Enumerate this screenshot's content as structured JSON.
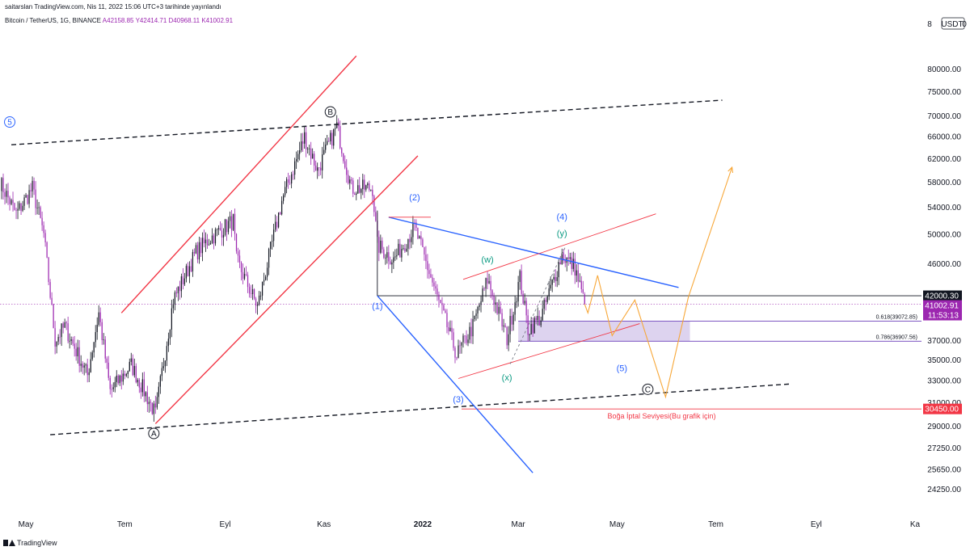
{
  "header": {
    "publisher_line": "saitarslan TradingView.com, Nis 11, 2022 15:06 UTC+3 tarihinde yayınlandı",
    "symbol": "Bitcoin / TetherUS, 1G, BINANCE",
    "open": "A42158.85",
    "high": "Y42414.71",
    "low": "D40968.11",
    "close": "K41002.91",
    "currency": "USDT",
    "currency_prefix": "8",
    "currency_suffix": "0"
  },
  "brand": {
    "name": "TradingView"
  },
  "colors": {
    "up": "#131722",
    "down": "#9c27b0",
    "channel": "#f23645",
    "trend_blue": "#2962ff",
    "projection": "#f7a738",
    "fib_zone": "#b39ddb",
    "wave_green": "#089981",
    "invalid": "#f23645"
  },
  "chart_data": {
    "type": "candlestick",
    "x_axis": {
      "type": "date",
      "range": [
        "2021-04-15",
        "2022-11-05"
      ],
      "tick_labels": [
        {
          "label": "May",
          "date": "2021-05-01"
        },
        {
          "label": "Tem",
          "date": "2021-07-01"
        },
        {
          "label": "Eyl",
          "date": "2021-09-01"
        },
        {
          "label": "Kas",
          "date": "2021-11-01"
        },
        {
          "label": "2022",
          "date": "2022-01-01",
          "bold": true
        },
        {
          "label": "Mar",
          "date": "2022-03-01"
        },
        {
          "label": "May",
          "date": "2022-05-01"
        },
        {
          "label": "Tem",
          "date": "2022-07-01"
        },
        {
          "label": "Eyl",
          "date": "2022-09-01"
        },
        {
          "label": "Ka",
          "date": "2022-11-01"
        }
      ]
    },
    "y_axis": {
      "scale": "log",
      "range": [
        22500,
        90000
      ],
      "tick_labels": [
        "80000.00",
        "75000.00",
        "70000.00",
        "66000.00",
        "62000.00",
        "58000.00",
        "54000.00",
        "50000.00",
        "46000.00",
        "42000.00",
        "37000.00",
        "35000.00",
        "33000.00",
        "31000.00",
        "29000.00",
        "27250.00",
        "25650.00",
        "24250.00"
      ]
    },
    "price_anchors": [
      {
        "date": "2021-04-15",
        "price": 58000
      },
      {
        "date": "2021-04-25",
        "price": 53000
      },
      {
        "date": "2021-05-05",
        "price": 57000
      },
      {
        "date": "2021-05-12",
        "price": 50000
      },
      {
        "date": "2021-05-19",
        "price": 37000
      },
      {
        "date": "2021-05-25",
        "price": 38500
      },
      {
        "date": "2021-06-08",
        "price": 33500
      },
      {
        "date": "2021-06-15",
        "price": 40000
      },
      {
        "date": "2021-06-22",
        "price": 32000
      },
      {
        "date": "2021-07-05",
        "price": 34500
      },
      {
        "date": "2021-07-20",
        "price": 30000
      },
      {
        "date": "2021-07-31",
        "price": 41500
      },
      {
        "date": "2021-08-14",
        "price": 47500
      },
      {
        "date": "2021-08-23",
        "price": 49500
      },
      {
        "date": "2021-09-06",
        "price": 52000
      },
      {
        "date": "2021-09-08",
        "price": 46500
      },
      {
        "date": "2021-09-21",
        "price": 40700
      },
      {
        "date": "2021-10-06",
        "price": 55000
      },
      {
        "date": "2021-10-20",
        "price": 66000
      },
      {
        "date": "2021-10-28",
        "price": 60000
      },
      {
        "date": "2021-11-09",
        "price": 68000
      },
      {
        "date": "2021-11-18",
        "price": 57000
      },
      {
        "date": "2021-12-01",
        "price": 57000
      },
      {
        "date": "2021-12-04",
        "price": 48500
      },
      {
        "date": "2021-12-14",
        "price": 46500
      },
      {
        "date": "2021-12-27",
        "price": 51000
      },
      {
        "date": "2022-01-10",
        "price": 41800
      },
      {
        "date": "2022-01-22",
        "price": 35500
      },
      {
        "date": "2022-02-01",
        "price": 38500
      },
      {
        "date": "2022-02-10",
        "price": 44000
      },
      {
        "date": "2022-02-22",
        "price": 37200
      },
      {
        "date": "2022-03-02",
        "price": 44200
      },
      {
        "date": "2022-03-07",
        "price": 38200
      },
      {
        "date": "2022-03-15",
        "price": 39500
      },
      {
        "date": "2022-03-28",
        "price": 47200
      },
      {
        "date": "2022-04-05",
        "price": 45500
      },
      {
        "date": "2022-04-11",
        "price": 41000
      }
    ],
    "last_bar": {
      "open": 42158.85,
      "high": 42414.71,
      "low": 40968.11,
      "close": 41002.91
    },
    "price_labels": [
      {
        "text": "42000.30",
        "price": 42000.3,
        "style": "dark"
      },
      {
        "text": "41002.91",
        "price": 41002.91,
        "style": "purple"
      },
      {
        "text": "11:53:13",
        "style": "purple-sub"
      },
      {
        "text": "30450.00",
        "price": 30450,
        "style": "red"
      }
    ],
    "horizontal_levels": [
      {
        "name": "level-42000",
        "price": 42000.3,
        "from": "2021-12-04",
        "color": "#131722"
      },
      {
        "name": "current-price",
        "price": 41002.91,
        "from": "2021-04-15",
        "color": "#9c27b0",
        "dotted": true
      },
      {
        "name": "invalidation",
        "price": 30450,
        "from": "2022-01-25",
        "color": "#f23645"
      }
    ],
    "fib_zone": {
      "from": "2022-03-01",
      "to": "2022-06-15",
      "upper": {
        "price": 39072.85,
        "label": "0.618(39072.85)"
      },
      "lower": {
        "price": 36907.56,
        "label": "0.786(36907.56)"
      }
    },
    "trend_lines": [
      {
        "name": "upper-dashed-channel",
        "style": "dashed",
        "color": "#131722",
        "p1": {
          "date": "2021-04-22",
          "price": 64500
        },
        "p2": {
          "date": "2022-07-05",
          "price": 73200
        }
      },
      {
        "name": "lower-dashed-channel",
        "style": "dashed",
        "color": "#131722",
        "p1": {
          "date": "2021-05-16",
          "price": 28300
        },
        "p2": {
          "date": "2022-08-17",
          "price": 32700
        }
      },
      {
        "name": "red-channel-upper",
        "color": "#f23645",
        "p1": {
          "date": "2021-06-29",
          "price": 40000
        },
        "p2": {
          "date": "2021-11-21",
          "price": 83000
        }
      },
      {
        "name": "red-channel-lower",
        "color": "#f23645",
        "p1": {
          "date": "2021-07-20",
          "price": 29200
        },
        "p2": {
          "date": "2021-12-29",
          "price": 62500
        }
      },
      {
        "name": "blue-descending-upper",
        "color": "#2962ff",
        "p1": {
          "date": "2021-12-11",
          "price": 52500
        },
        "p2": {
          "date": "2022-06-08",
          "price": 43000
        }
      },
      {
        "name": "blue-descending-lower",
        "color": "#2962ff",
        "p1": {
          "date": "2021-12-04",
          "price": 42000
        },
        "p2": {
          "date": "2022-03-10",
          "price": 25400
        }
      },
      {
        "name": "triangle-upper-red",
        "color": "#f23645",
        "p1": {
          "date": "2022-01-26",
          "price": 44000
        },
        "p2": {
          "date": "2022-05-25",
          "price": 53000
        },
        "thin": true
      },
      {
        "name": "triangle-lower-red",
        "color": "#f23645",
        "p1": {
          "date": "2022-01-23",
          "price": 33200
        },
        "p2": {
          "date": "2022-05-15",
          "price": 38800
        },
        "thin": true
      },
      {
        "name": "wave-2-top-line",
        "color": "#f23645",
        "p1": {
          "date": "2021-12-11",
          "price": 52500
        },
        "p2": {
          "date": "2022-01-06",
          "price": 52500
        },
        "thin": true
      },
      {
        "name": "wave-x-y-dashed",
        "style": "dashed",
        "color": "#787b86",
        "p1": {
          "date": "2022-02-24",
          "price": 34600
        },
        "p2": {
          "date": "2022-03-30",
          "price": 48200
        },
        "thin": true
      },
      {
        "name": "wave-1-vertical",
        "color": "#131722",
        "p1": {
          "date": "2021-12-04",
          "price": 42000
        },
        "p2": {
          "date": "2021-12-04",
          "price": 53500
        },
        "thin": true
      }
    ],
    "projections": [
      {
        "name": "short-term-zigzag",
        "color": "#f7a738",
        "points": [
          {
            "date": "2022-04-11",
            "price": 41000
          },
          {
            "date": "2022-04-13",
            "price": 40000
          },
          {
            "date": "2022-04-19",
            "price": 44500
          },
          {
            "date": "2022-04-28",
            "price": 37500
          },
          {
            "date": "2022-05-12",
            "price": 41500
          },
          {
            "date": "2022-05-31",
            "price": 31500
          },
          {
            "date": "2022-06-14",
            "price": 41800
          },
          {
            "date": "2022-07-11",
            "price": 60500
          }
        ]
      }
    ],
    "annotations": [
      {
        "text": "5",
        "date": "2021-04-21",
        "price": 68800,
        "color": "#2962ff",
        "circled": true
      },
      {
        "text": "B",
        "date": "2021-11-05",
        "price": 70800,
        "color": "#131722",
        "circled": true
      },
      {
        "text": "A",
        "date": "2021-07-19",
        "price": 28400,
        "color": "#131722",
        "circled": true
      },
      {
        "text": "C",
        "date": "2022-05-20",
        "price": 32200,
        "color": "#131722",
        "circled": true
      },
      {
        "text": "(1)",
        "date": "2021-12-04",
        "price": 40800,
        "color": "#2962ff"
      },
      {
        "text": "(2)",
        "date": "2021-12-27",
        "price": 55600,
        "color": "#2962ff"
      },
      {
        "text": "(3)",
        "date": "2022-01-23",
        "price": 31300,
        "color": "#2962ff"
      },
      {
        "text": "(4)",
        "date": "2022-03-28",
        "price": 52600,
        "color": "#2962ff"
      },
      {
        "text": "(5)",
        "date": "2022-05-04",
        "price": 34200,
        "color": "#2962ff"
      },
      {
        "text": "(w)",
        "date": "2022-02-10",
        "price": 46600,
        "color": "#089981"
      },
      {
        "text": "(x)",
        "date": "2022-02-22",
        "price": 33300,
        "color": "#089981"
      },
      {
        "text": "(y)",
        "date": "2022-03-28",
        "price": 50200,
        "color": "#089981"
      },
      {
        "text": "Boğa İptal Seviyesi(Bu grafik için)",
        "date": "2022-07-01",
        "price": 29900,
        "color": "#f23645",
        "align": "end"
      }
    ]
  }
}
